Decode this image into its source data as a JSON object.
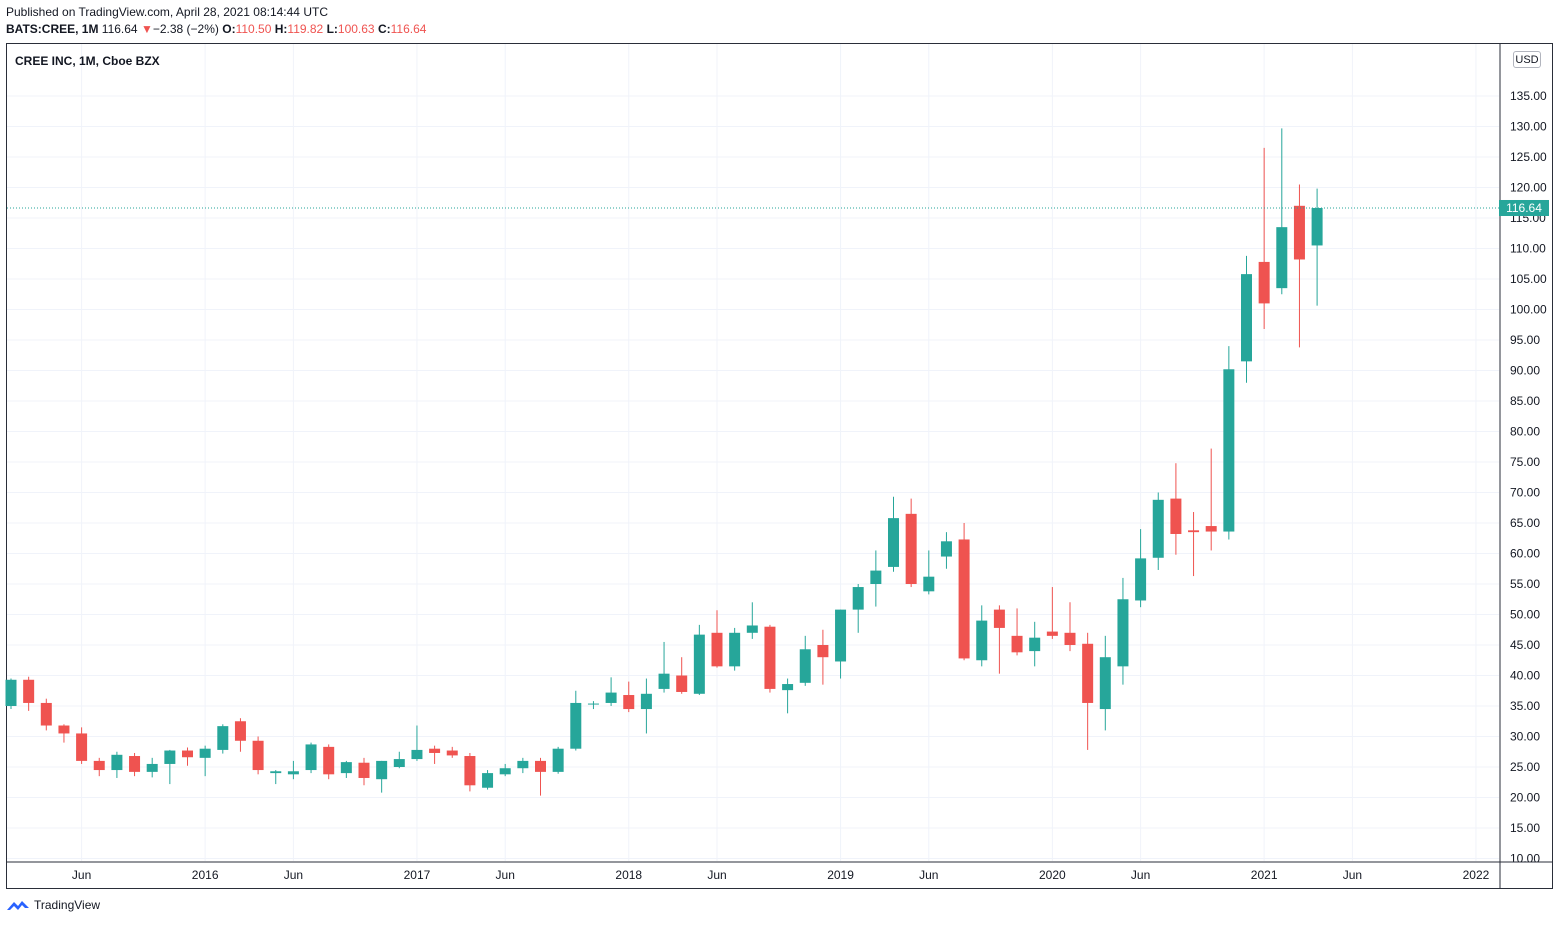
{
  "header": {
    "published": "Published on TradingView.com, April 28, 2021 08:14:44 UTC",
    "symbol": "BATS:CREE, 1M",
    "last": "116.64",
    "change_arrow": "▼",
    "change": "−2.38 (−2%)",
    "o_label": "O:",
    "o_value": "110.50",
    "h_label": "H:",
    "h_value": "119.82",
    "l_label": "L:",
    "l_value": "100.63",
    "c_label": "C:",
    "c_value": "116.64"
  },
  "legend_title": "CREE INC, 1M, Cboe BZX",
  "currency_button": "USD",
  "footer": {
    "brand": "TradingView"
  },
  "colors": {
    "up": "#26a69a",
    "down": "#ef5350",
    "grid": "#f0f3fa",
    "text": "#131722",
    "price_line": "#26a69a"
  },
  "chart_data": {
    "type": "candlestick",
    "title": "CREE INC, 1M, Cboe BZX",
    "interval": "1M",
    "currency": "USD",
    "last_price": 116.64,
    "ylim": [
      10,
      138
    ],
    "y_ticks": [
      10,
      15,
      20,
      25,
      30,
      35,
      40,
      45,
      50,
      55,
      60,
      65,
      70,
      75,
      80,
      85,
      90,
      95,
      100,
      105,
      110,
      115,
      120,
      125,
      130,
      135
    ],
    "x_labels": [
      {
        "label": "Jun",
        "i": 4
      },
      {
        "label": "2016",
        "i": 11
      },
      {
        "label": "Jun",
        "i": 16
      },
      {
        "label": "2017",
        "i": 23
      },
      {
        "label": "Jun",
        "i": 28
      },
      {
        "label": "2018",
        "i": 35
      },
      {
        "label": "Jun",
        "i": 40
      },
      {
        "label": "2019",
        "i": 47
      },
      {
        "label": "Jun",
        "i": 52
      },
      {
        "label": "2020",
        "i": 59
      },
      {
        "label": "Jun",
        "i": 64
      },
      {
        "label": "2021",
        "i": 71
      },
      {
        "label": "Jun",
        "i": 76
      },
      {
        "label": "2022",
        "i": 83
      }
    ],
    "series": [
      {
        "date": "2015-02",
        "o": 35.0,
        "h": 39.5,
        "l": 34.5,
        "c": 39.3
      },
      {
        "date": "2015-03",
        "o": 39.3,
        "h": 39.8,
        "l": 34.2,
        "c": 35.5
      },
      {
        "date": "2015-04",
        "o": 35.5,
        "h": 36.2,
        "l": 31.0,
        "c": 31.8
      },
      {
        "date": "2015-05",
        "o": 31.8,
        "h": 32.0,
        "l": 29.0,
        "c": 30.5
      },
      {
        "date": "2015-06",
        "o": 30.5,
        "h": 31.5,
        "l": 25.5,
        "c": 26.0
      },
      {
        "date": "2015-07",
        "o": 26.0,
        "h": 26.5,
        "l": 23.5,
        "c": 24.5
      },
      {
        "date": "2015-08",
        "o": 24.5,
        "h": 27.5,
        "l": 23.2,
        "c": 27.0
      },
      {
        "date": "2015-09",
        "o": 26.8,
        "h": 27.3,
        "l": 23.5,
        "c": 24.2
      },
      {
        "date": "2015-10",
        "o": 24.2,
        "h": 26.5,
        "l": 23.3,
        "c": 25.5
      },
      {
        "date": "2015-11",
        "o": 25.5,
        "h": 27.8,
        "l": 22.2,
        "c": 27.7
      },
      {
        "date": "2015-12",
        "o": 27.7,
        "h": 28.2,
        "l": 25.2,
        "c": 26.6
      },
      {
        "date": "2016-01",
        "o": 26.5,
        "h": 28.5,
        "l": 23.5,
        "c": 28.0
      },
      {
        "date": "2016-02",
        "o": 27.8,
        "h": 32.0,
        "l": 27.2,
        "c": 31.7
      },
      {
        "date": "2016-03",
        "o": 32.5,
        "h": 33.0,
        "l": 27.5,
        "c": 29.3
      },
      {
        "date": "2016-04",
        "o": 29.3,
        "h": 30.0,
        "l": 23.8,
        "c": 24.5
      },
      {
        "date": "2016-05",
        "o": 24.0,
        "h": 24.5,
        "l": 22.2,
        "c": 24.3
      },
      {
        "date": "2016-06",
        "o": 23.8,
        "h": 26.0,
        "l": 23.0,
        "c": 24.3
      },
      {
        "date": "2016-07",
        "o": 24.5,
        "h": 29.0,
        "l": 24.0,
        "c": 28.7
      },
      {
        "date": "2016-08",
        "o": 28.3,
        "h": 28.7,
        "l": 23.0,
        "c": 23.8
      },
      {
        "date": "2016-09",
        "o": 24.0,
        "h": 26.0,
        "l": 23.2,
        "c": 25.8
      },
      {
        "date": "2016-10",
        "o": 25.7,
        "h": 26.5,
        "l": 22.0,
        "c": 23.2
      },
      {
        "date": "2016-11",
        "o": 23.0,
        "h": 26.0,
        "l": 20.8,
        "c": 26.0
      },
      {
        "date": "2016-12",
        "o": 25.0,
        "h": 27.5,
        "l": 24.8,
        "c": 26.3
      },
      {
        "date": "2017-01",
        "o": 26.3,
        "h": 31.8,
        "l": 26.0,
        "c": 27.8
      },
      {
        "date": "2017-02",
        "o": 28.0,
        "h": 28.5,
        "l": 25.5,
        "c": 27.3
      },
      {
        "date": "2017-03",
        "o": 27.7,
        "h": 28.3,
        "l": 26.5,
        "c": 26.9
      },
      {
        "date": "2017-04",
        "o": 26.8,
        "h": 27.3,
        "l": 21.0,
        "c": 22.0
      },
      {
        "date": "2017-05",
        "o": 21.6,
        "h": 24.5,
        "l": 21.3,
        "c": 24.0
      },
      {
        "date": "2017-06",
        "o": 23.8,
        "h": 25.5,
        "l": 23.5,
        "c": 24.8
      },
      {
        "date": "2017-07",
        "o": 24.8,
        "h": 26.5,
        "l": 24.0,
        "c": 26.0
      },
      {
        "date": "2017-08",
        "o": 26.0,
        "h": 26.5,
        "l": 20.3,
        "c": 24.2
      },
      {
        "date": "2017-09",
        "o": 24.2,
        "h": 28.3,
        "l": 23.9,
        "c": 28.0
      },
      {
        "date": "2017-10",
        "o": 28.0,
        "h": 37.5,
        "l": 27.7,
        "c": 35.5
      },
      {
        "date": "2017-11",
        "o": 35.3,
        "h": 35.8,
        "l": 34.5,
        "c": 35.4
      },
      {
        "date": "2017-12",
        "o": 35.5,
        "h": 39.7,
        "l": 35.0,
        "c": 37.2
      },
      {
        "date": "2018-01",
        "o": 36.8,
        "h": 39.0,
        "l": 34.0,
        "c": 34.5
      },
      {
        "date": "2018-02",
        "o": 34.5,
        "h": 39.5,
        "l": 30.5,
        "c": 37.0
      },
      {
        "date": "2018-03",
        "o": 37.8,
        "h": 45.5,
        "l": 37.2,
        "c": 40.3
      },
      {
        "date": "2018-04",
        "o": 40.0,
        "h": 43.0,
        "l": 37.0,
        "c": 37.3
      },
      {
        "date": "2018-05",
        "o": 37.0,
        "h": 48.3,
        "l": 36.8,
        "c": 46.7
      },
      {
        "date": "2018-06",
        "o": 47.0,
        "h": 50.7,
        "l": 41.3,
        "c": 41.5
      },
      {
        "date": "2018-07",
        "o": 41.5,
        "h": 47.8,
        "l": 40.8,
        "c": 47.0
      },
      {
        "date": "2018-08",
        "o": 47.0,
        "h": 52.0,
        "l": 46.0,
        "c": 48.2
      },
      {
        "date": "2018-09",
        "o": 48.0,
        "h": 48.3,
        "l": 37.2,
        "c": 37.8
      },
      {
        "date": "2018-10",
        "o": 37.6,
        "h": 39.5,
        "l": 33.8,
        "c": 38.6
      },
      {
        "date": "2018-11",
        "o": 38.8,
        "h": 46.5,
        "l": 38.3,
        "c": 44.3
      },
      {
        "date": "2018-12",
        "o": 45.0,
        "h": 47.5,
        "l": 38.5,
        "c": 43.0
      },
      {
        "date": "2019-01",
        "o": 42.3,
        "h": 50.8,
        "l": 39.5,
        "c": 50.8
      },
      {
        "date": "2019-02",
        "o": 50.8,
        "h": 55.0,
        "l": 47.0,
        "c": 54.5
      },
      {
        "date": "2019-03",
        "o": 55.0,
        "h": 60.5,
        "l": 51.3,
        "c": 57.2
      },
      {
        "date": "2019-04",
        "o": 57.8,
        "h": 69.3,
        "l": 57.0,
        "c": 65.8
      },
      {
        "date": "2019-05",
        "o": 66.5,
        "h": 69.0,
        "l": 54.5,
        "c": 55.0
      },
      {
        "date": "2019-06",
        "o": 53.8,
        "h": 60.5,
        "l": 53.3,
        "c": 56.2
      },
      {
        "date": "2019-07",
        "o": 59.5,
        "h": 63.5,
        "l": 57.5,
        "c": 62.0
      },
      {
        "date": "2019-08",
        "o": 62.3,
        "h": 65.0,
        "l": 42.5,
        "c": 42.8
      },
      {
        "date": "2019-09",
        "o": 42.5,
        "h": 51.5,
        "l": 41.5,
        "c": 49.0
      },
      {
        "date": "2019-10",
        "o": 50.8,
        "h": 51.5,
        "l": 40.3,
        "c": 47.8
      },
      {
        "date": "2019-11",
        "o": 46.5,
        "h": 51.0,
        "l": 43.3,
        "c": 43.8
      },
      {
        "date": "2019-12",
        "o": 44.0,
        "h": 48.8,
        "l": 41.5,
        "c": 46.2
      },
      {
        "date": "2020-01",
        "o": 47.2,
        "h": 54.5,
        "l": 46.0,
        "c": 46.5
      },
      {
        "date": "2020-02",
        "o": 47.0,
        "h": 52.0,
        "l": 44.0,
        "c": 45.0
      },
      {
        "date": "2020-03",
        "o": 45.2,
        "h": 47.0,
        "l": 27.8,
        "c": 35.5
      },
      {
        "date": "2020-04",
        "o": 34.5,
        "h": 46.5,
        "l": 31.0,
        "c": 43.0
      },
      {
        "date": "2020-05",
        "o": 41.5,
        "h": 56.0,
        "l": 38.5,
        "c": 52.5
      },
      {
        "date": "2020-06",
        "o": 52.3,
        "h": 64.0,
        "l": 51.2,
        "c": 59.2
      },
      {
        "date": "2020-07",
        "o": 59.3,
        "h": 70.0,
        "l": 57.3,
        "c": 68.8
      },
      {
        "date": "2020-08",
        "o": 69.0,
        "h": 74.8,
        "l": 59.8,
        "c": 63.2
      },
      {
        "date": "2020-09",
        "o": 63.8,
        "h": 66.8,
        "l": 56.3,
        "c": 63.5
      },
      {
        "date": "2020-10",
        "o": 64.5,
        "h": 77.2,
        "l": 60.5,
        "c": 63.6
      },
      {
        "date": "2020-11",
        "o": 63.6,
        "h": 94.0,
        "l": 62.3,
        "c": 90.2
      },
      {
        "date": "2020-12",
        "o": 91.5,
        "h": 108.8,
        "l": 88.0,
        "c": 105.8
      },
      {
        "date": "2021-01",
        "o": 107.8,
        "h": 126.5,
        "l": 96.8,
        "c": 101.0
      },
      {
        "date": "2021-02",
        "o": 103.5,
        "h": 129.7,
        "l": 102.5,
        "c": 113.5
      },
      {
        "date": "2021-03",
        "o": 117.0,
        "h": 120.5,
        "l": 93.8,
        "c": 108.2
      },
      {
        "date": "2021-04",
        "o": 110.5,
        "h": 119.82,
        "l": 100.63,
        "c": 116.64
      }
    ]
  }
}
